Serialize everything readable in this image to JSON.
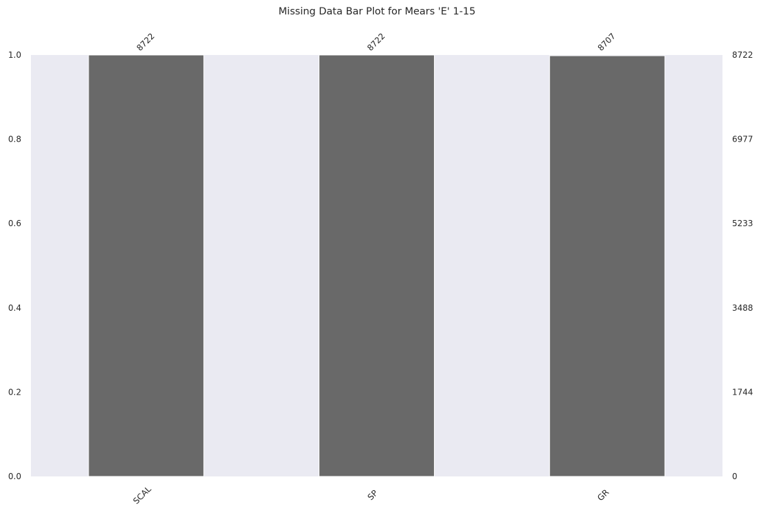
{
  "chart_data": {
    "type": "bar",
    "title": "Missing Data Bar Plot for Mears 'E' 1-15",
    "xlabel": "",
    "ylabel": "",
    "categories": [
      "SCAL",
      "SP",
      "GR"
    ],
    "values": [
      8722,
      8722,
      8707
    ],
    "total_rows": 8722,
    "ylim": [
      0,
      1
    ],
    "left_ticks": [
      "0.0",
      "0.2",
      "0.4",
      "0.6",
      "0.8",
      "1.0"
    ],
    "right_ticks": [
      "0",
      "1744",
      "3488",
      "5233",
      "6977",
      "8722"
    ],
    "top_labels": [
      "8722",
      "8722",
      "8707"
    ],
    "grid": false,
    "legend": "none",
    "colors": {
      "bar": "#696969",
      "plot_background": "#eaeaf2",
      "bar_edge": "#ffffff"
    }
  }
}
